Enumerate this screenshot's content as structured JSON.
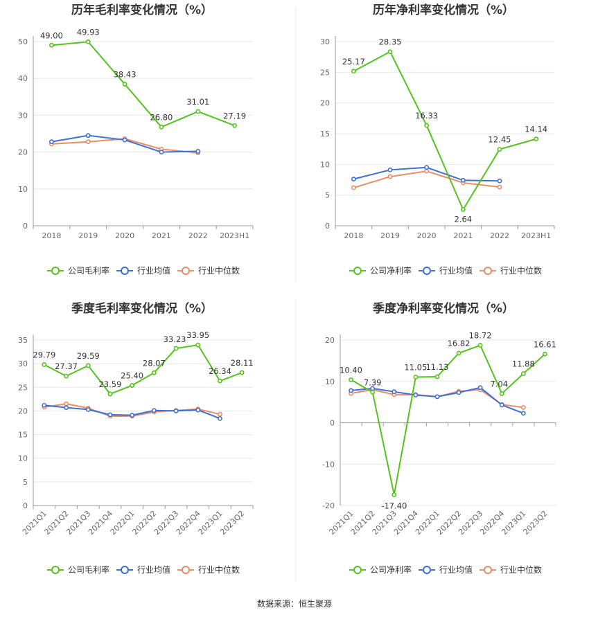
{
  "colors": {
    "company": "#52c41a",
    "avg": "#3b6fd8",
    "median": "#f08a62"
  },
  "footer": {
    "source": "数据来源：恒生聚源"
  },
  "chart_data": [
    {
      "type": "line",
      "title": "历年毛利率变化情况（%）",
      "categories": [
        "2018",
        "2019",
        "2020",
        "2021",
        "2022",
        "2023H1"
      ],
      "ylim": [
        0,
        50
      ],
      "yticks": [
        0,
        10,
        20,
        30,
        40,
        50
      ],
      "series": [
        {
          "name": "公司毛利率",
          "key": "company",
          "values": [
            49.0,
            49.93,
            38.43,
            26.8,
            31.01,
            27.19
          ],
          "labels": [
            "49.00",
            "49.93",
            "38.43",
            "26.80",
            "31.01",
            "27.19"
          ]
        },
        {
          "name": "行业均值",
          "key": "avg",
          "values": [
            22.8,
            24.5,
            23.3,
            20.0,
            20.2,
            null
          ]
        },
        {
          "name": "行业中位数",
          "key": "median",
          "values": [
            22.2,
            22.8,
            23.6,
            20.8,
            19.8,
            null
          ]
        }
      ]
    },
    {
      "type": "line",
      "title": "历年净利率变化情况（%）",
      "categories": [
        "2018",
        "2019",
        "2020",
        "2021",
        "2022",
        "2023H1"
      ],
      "ylim": [
        0,
        30
      ],
      "yticks": [
        0,
        5,
        10,
        15,
        20,
        25,
        30
      ],
      "series": [
        {
          "name": "公司净利率",
          "key": "company",
          "values": [
            25.17,
            28.35,
            16.33,
            2.64,
            12.45,
            14.14
          ],
          "labels": [
            "25.17",
            "28.35",
            "16.33",
            "2.64",
            "12.45",
            "14.14"
          ]
        },
        {
          "name": "行业均值",
          "key": "avg",
          "values": [
            7.6,
            9.1,
            9.5,
            7.4,
            7.3,
            null
          ]
        },
        {
          "name": "行业中位数",
          "key": "median",
          "values": [
            6.2,
            8.0,
            8.9,
            7.0,
            6.3,
            null
          ]
        }
      ]
    },
    {
      "type": "line",
      "title": "季度毛利率变化情况（%）",
      "categories": [
        "2021Q1",
        "2021Q2",
        "2021Q3",
        "2021Q4",
        "2022Q1",
        "2022Q2",
        "2022Q3",
        "2022Q4",
        "2023Q1",
        "2023Q2"
      ],
      "ylim": [
        0,
        35
      ],
      "yticks": [
        0,
        5,
        10,
        15,
        20,
        25,
        30,
        35
      ],
      "series": [
        {
          "name": "公司毛利率",
          "key": "company",
          "values": [
            29.79,
            27.37,
            29.59,
            23.59,
            25.4,
            28.07,
            33.23,
            33.95,
            26.34,
            28.11
          ],
          "labels": [
            "29.79",
            "27.37",
            "29.59",
            "23.59",
            "25.40",
            "28.07",
            "33.23",
            "33.95",
            "26.34",
            "28.11"
          ]
        },
        {
          "name": "行业均值",
          "key": "avg",
          "values": [
            21.2,
            20.7,
            20.3,
            19.2,
            19.1,
            20.1,
            20.0,
            20.2,
            18.4,
            null
          ]
        },
        {
          "name": "行业中位数",
          "key": "median",
          "values": [
            20.8,
            21.5,
            20.6,
            18.9,
            18.9,
            19.8,
            20.1,
            20.4,
            19.3,
            null
          ]
        }
      ]
    },
    {
      "type": "line",
      "title": "季度净利率变化情况（%）",
      "categories": [
        "2021Q1",
        "2021Q2",
        "2021Q3",
        "2021Q4",
        "2022Q1",
        "2022Q2",
        "2022Q3",
        "2022Q4",
        "2023Q1",
        "2023Q2"
      ],
      "ylim": [
        -20,
        20
      ],
      "yticks": [
        -20,
        -10,
        0,
        10,
        20
      ],
      "series": [
        {
          "name": "公司净利率",
          "key": "company",
          "values": [
            10.4,
            7.39,
            -17.4,
            11.05,
            11.13,
            16.82,
            18.72,
            7.04,
            11.88,
            16.61
          ],
          "labels": [
            "10.40",
            "7.39",
            "-17.40",
            "11.05",
            "11.13",
            "16.82",
            "18.72",
            "7.04",
            "11.88",
            "16.61"
          ]
        },
        {
          "name": "行业均值",
          "key": "avg",
          "values": [
            7.8,
            8.3,
            7.5,
            6.7,
            6.3,
            7.3,
            8.5,
            4.3,
            2.3,
            null
          ]
        },
        {
          "name": "行业中位数",
          "key": "median",
          "values": [
            7.1,
            8.0,
            6.8,
            6.8,
            6.3,
            7.6,
            8.0,
            4.4,
            3.7,
            null
          ]
        }
      ]
    }
  ]
}
